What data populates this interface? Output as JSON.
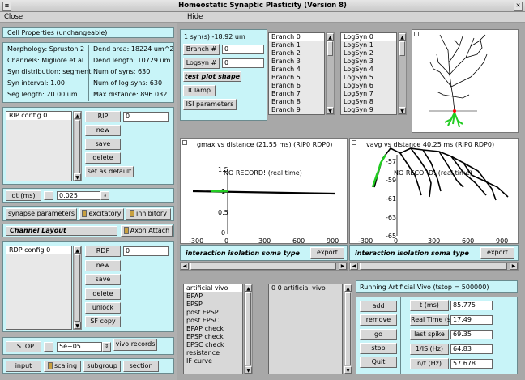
{
  "window": {
    "title": "Homeostatic Synaptic Plasticity (Version 8)"
  },
  "menu": {
    "close": "Close",
    "hide": "Hide"
  },
  "cell": {
    "header": "Cell Properties (unchangeable)",
    "left": [
      "Morphology: Spruston 2",
      "Channels: Migliore et al.",
      "Syn distribution: segment",
      "Syn interval: 1.00",
      "Seg length: 20.00 um"
    ],
    "right": [
      "Dend area: 18224 um^2",
      "Dend length: 10729 um",
      "Num of syns: 630",
      "Num of log syns: 630",
      "Max distance: 896.032"
    ]
  },
  "rip": {
    "list_item": "RIP config 0",
    "button": "RIP",
    "value": "0",
    "new": "new",
    "save": "save",
    "delete": "delete",
    "default": "set as default"
  },
  "dt": {
    "label": "dt (ms)",
    "value": "0.025"
  },
  "synrow": {
    "params": "synapse parameters",
    "exc": "excitatory",
    "inh": "inhibitory"
  },
  "channel": {
    "label": "Channel Layout",
    "axon": "Axon Attach"
  },
  "rdp": {
    "list_item": "RDP config 0",
    "button": "RDP",
    "value": "0",
    "new": "new",
    "save": "save",
    "delete": "delete",
    "unlock": "unlock",
    "sfcopy": "SF copy"
  },
  "tstop": {
    "label": "TSTOP",
    "value": "5e+05",
    "vivo": "vivo records"
  },
  "bottom": {
    "input": "input",
    "scaling": "scaling",
    "subgroup": "subgroup",
    "section": "section"
  },
  "syn": {
    "title": "1 syn(s) -18.92 um",
    "branch_label": "Branch #",
    "branch_value": "0",
    "logsyn_label": "Logsyn #",
    "logsyn_value": "0",
    "test": "test plot  shape",
    "iclamp": "IClamp",
    "isi": "ISI parameters",
    "branches": [
      "Branch 0",
      "Branch 1",
      "Branch 2",
      "Branch 3",
      "Branch 4",
      "Branch 5",
      "Branch 6",
      "Branch 7",
      "Branch 8",
      "Branch 9"
    ],
    "logsyns": [
      "LogSyn 0",
      "LogSyn 1",
      "LogSyn 2",
      "LogSyn 3",
      "LogSyn 4",
      "LogSyn 5",
      "LogSyn 6",
      "LogSyn 7",
      "LogSyn 8",
      "LogSyn 9"
    ]
  },
  "plot1": {
    "title": "gmax vs distance (21.55 ms) (RIP0 RDP0)",
    "norecord": "NO RECORD! (real time)",
    "yticks": [
      "1.5",
      "1",
      "0.5",
      "0"
    ],
    "xticks": [
      "-300",
      "0",
      "300",
      "600",
      "900"
    ],
    "menu": "interaction  isolation  soma  type",
    "export": "export"
  },
  "plot2": {
    "title": "vavg vs distance 40.25 ms (RIP0 RDP0)",
    "norecord": "NO RECORD! (real time)",
    "yticks": [
      "-57",
      "-59",
      "-61",
      "-63",
      "-65"
    ],
    "xticks": [
      "-300",
      "0",
      "300",
      "600",
      "900"
    ],
    "menu": "interaction  isolation  soma  type",
    "export": "export"
  },
  "protocols": [
    "artificial vivo",
    "BPAP",
    "EPSP",
    "post EPSP",
    "post EPSC",
    "BPAP check",
    "EPSP check",
    "EPSC check",
    "resistance",
    "IF curve"
  ],
  "protocol_selected": "0 0 artificial vivo",
  "run": {
    "title": "Running Artificial Vivo (tstop = 500000)",
    "buttons": [
      "add",
      "remove",
      "go",
      "stop",
      "Quit"
    ],
    "stats": [
      {
        "label": "t (ms)",
        "value": "85.775"
      },
      {
        "label": "Real Time (s)",
        "value": "17.49"
      },
      {
        "label": "last spike",
        "value": "69.35"
      },
      {
        "label": "1/ISI(Hz)",
        "value": "64.83"
      },
      {
        "label": "n/t  (Hz)",
        "value": "57.678"
      }
    ]
  },
  "colors": {
    "panel": "#c8f4f8",
    "highlight": "#22cc22",
    "marker": "#ff0000"
  }
}
